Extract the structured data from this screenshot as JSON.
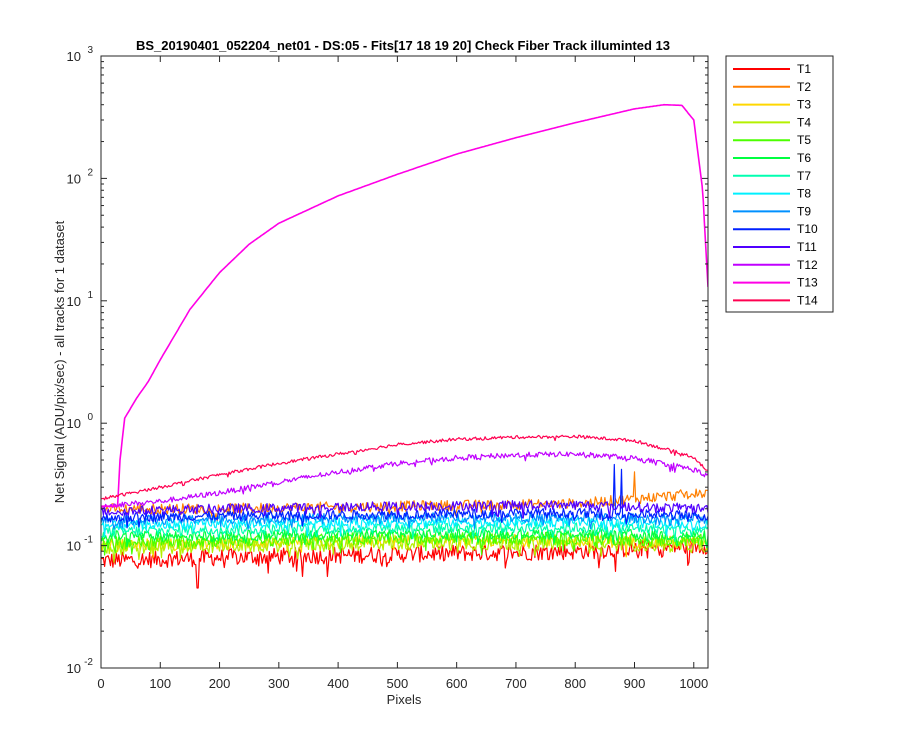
{
  "chart_data": {
    "type": "line",
    "title": "BS_20190401_052204_net01 - DS:05 - Fits[17  18  19  20]   Check Fiber     Track illuminted 13",
    "xlabel": "Pixels",
    "ylabel": "Net Signal (ADU/pix/sec) - all tracks for 1 dataset",
    "xlim": [
      0,
      1024
    ],
    "ylim": [
      0.01,
      1000
    ],
    "yscale": "log",
    "x_ticks": [
      0,
      100,
      200,
      300,
      400,
      500,
      600,
      700,
      800,
      900,
      1000
    ],
    "y_ticks": [
      {
        "base": "10",
        "exp": "-2"
      },
      {
        "base": "10",
        "exp": "-1"
      },
      {
        "base": "10",
        "exp": "0"
      },
      {
        "base": "10",
        "exp": "1"
      },
      {
        "base": "10",
        "exp": "2"
      },
      {
        "base": "10",
        "exp": "3"
      }
    ],
    "grid": false,
    "legend_position": "outside-top-right",
    "series": [
      {
        "name": "T1",
        "color": "#ff0000",
        "baseline": [
          [
            0,
            0.075
          ],
          [
            200,
            0.08
          ],
          [
            500,
            0.085
          ],
          [
            800,
            0.09
          ],
          [
            1024,
            0.1
          ]
        ],
        "noise": 0.16
      },
      {
        "name": "T2",
        "color": "#ff7f00",
        "baseline": [
          [
            0,
            0.2
          ],
          [
            200,
            0.2
          ],
          [
            500,
            0.21
          ],
          [
            800,
            0.22
          ],
          [
            1024,
            0.27
          ]
        ],
        "noise": 0.1
      },
      {
        "name": "T3",
        "color": "#ffd700",
        "baseline": [
          [
            0,
            0.1
          ],
          [
            200,
            0.105
          ],
          [
            500,
            0.11
          ],
          [
            800,
            0.11
          ],
          [
            1024,
            0.105
          ]
        ],
        "noise": 0.12
      },
      {
        "name": "T4",
        "color": "#b5f000",
        "baseline": [
          [
            0,
            0.095
          ],
          [
            200,
            0.1
          ],
          [
            500,
            0.105
          ],
          [
            800,
            0.105
          ],
          [
            1024,
            0.1
          ]
        ],
        "noise": 0.14
      },
      {
        "name": "T5",
        "color": "#4cff00",
        "baseline": [
          [
            0,
            0.105
          ],
          [
            200,
            0.11
          ],
          [
            500,
            0.115
          ],
          [
            800,
            0.115
          ],
          [
            1024,
            0.11
          ]
        ],
        "noise": 0.12
      },
      {
        "name": "T6",
        "color": "#00ff40",
        "baseline": [
          [
            0,
            0.12
          ],
          [
            200,
            0.12
          ],
          [
            500,
            0.125
          ],
          [
            800,
            0.125
          ],
          [
            1024,
            0.12
          ]
        ],
        "noise": 0.1
      },
      {
        "name": "T7",
        "color": "#00ffb0",
        "baseline": [
          [
            0,
            0.13
          ],
          [
            200,
            0.135
          ],
          [
            500,
            0.14
          ],
          [
            800,
            0.14
          ],
          [
            1024,
            0.135
          ]
        ],
        "noise": 0.1
      },
      {
        "name": "T8",
        "color": "#00f0ff",
        "baseline": [
          [
            0,
            0.145
          ],
          [
            200,
            0.15
          ],
          [
            500,
            0.155
          ],
          [
            800,
            0.155
          ],
          [
            1024,
            0.15
          ]
        ],
        "noise": 0.09
      },
      {
        "name": "T9",
        "color": "#0090ff",
        "baseline": [
          [
            0,
            0.16
          ],
          [
            200,
            0.165
          ],
          [
            500,
            0.17
          ],
          [
            800,
            0.17
          ],
          [
            1024,
            0.165
          ]
        ],
        "noise": 0.09
      },
      {
        "name": "T10",
        "color": "#0020ff",
        "baseline": [
          [
            0,
            0.17
          ],
          [
            200,
            0.175
          ],
          [
            500,
            0.18
          ],
          [
            800,
            0.185
          ],
          [
            1024,
            0.175
          ]
        ],
        "noise": 0.09
      },
      {
        "name": "T11",
        "color": "#5000ff",
        "baseline": [
          [
            0,
            0.19
          ],
          [
            200,
            0.2
          ],
          [
            500,
            0.21
          ],
          [
            800,
            0.215
          ],
          [
            1024,
            0.2
          ]
        ],
        "noise": 0.09
      },
      {
        "name": "T12",
        "color": "#c000ff",
        "baseline": [
          [
            0,
            0.21
          ],
          [
            100,
            0.23
          ],
          [
            200,
            0.27
          ],
          [
            300,
            0.33
          ],
          [
            400,
            0.4
          ],
          [
            500,
            0.47
          ],
          [
            600,
            0.52
          ],
          [
            700,
            0.55
          ],
          [
            800,
            0.56
          ],
          [
            900,
            0.52
          ],
          [
            1000,
            0.42
          ],
          [
            1024,
            0.37
          ]
        ],
        "noise": 0.05
      },
      {
        "name": "T13",
        "color": "#ff00e6",
        "baseline": [
          [
            0,
            0.21
          ],
          [
            28,
            0.21
          ],
          [
            32,
            0.5
          ],
          [
            40,
            1.1
          ],
          [
            60,
            1.6
          ],
          [
            80,
            2.2
          ],
          [
            100,
            3.3
          ],
          [
            150,
            8.5
          ],
          [
            200,
            17
          ],
          [
            250,
            29
          ],
          [
            300,
            43
          ],
          [
            400,
            72
          ],
          [
            500,
            108
          ],
          [
            600,
            158
          ],
          [
            700,
            215
          ],
          [
            800,
            285
          ],
          [
            900,
            370
          ],
          [
            950,
            400
          ],
          [
            980,
            395
          ],
          [
            1000,
            300
          ],
          [
            1015,
            80
          ],
          [
            1024,
            13
          ]
        ],
        "noise": 0.0
      },
      {
        "name": "T14",
        "color": "#ff0050",
        "baseline": [
          [
            0,
            0.24
          ],
          [
            100,
            0.3
          ],
          [
            200,
            0.38
          ],
          [
            300,
            0.47
          ],
          [
            400,
            0.56
          ],
          [
            500,
            0.67
          ],
          [
            600,
            0.74
          ],
          [
            700,
            0.77
          ],
          [
            800,
            0.78
          ],
          [
            900,
            0.72
          ],
          [
            1000,
            0.53
          ],
          [
            1024,
            0.4
          ]
        ],
        "noise": 0.03
      }
    ],
    "spikes": [
      {
        "series": "T10",
        "x": 866,
        "y": 0.46
      },
      {
        "series": "T10",
        "x": 878,
        "y": 0.42
      },
      {
        "series": "T2",
        "x": 900,
        "y": 0.4
      },
      {
        "series": "T1",
        "x": 163,
        "y": 0.045
      }
    ]
  }
}
